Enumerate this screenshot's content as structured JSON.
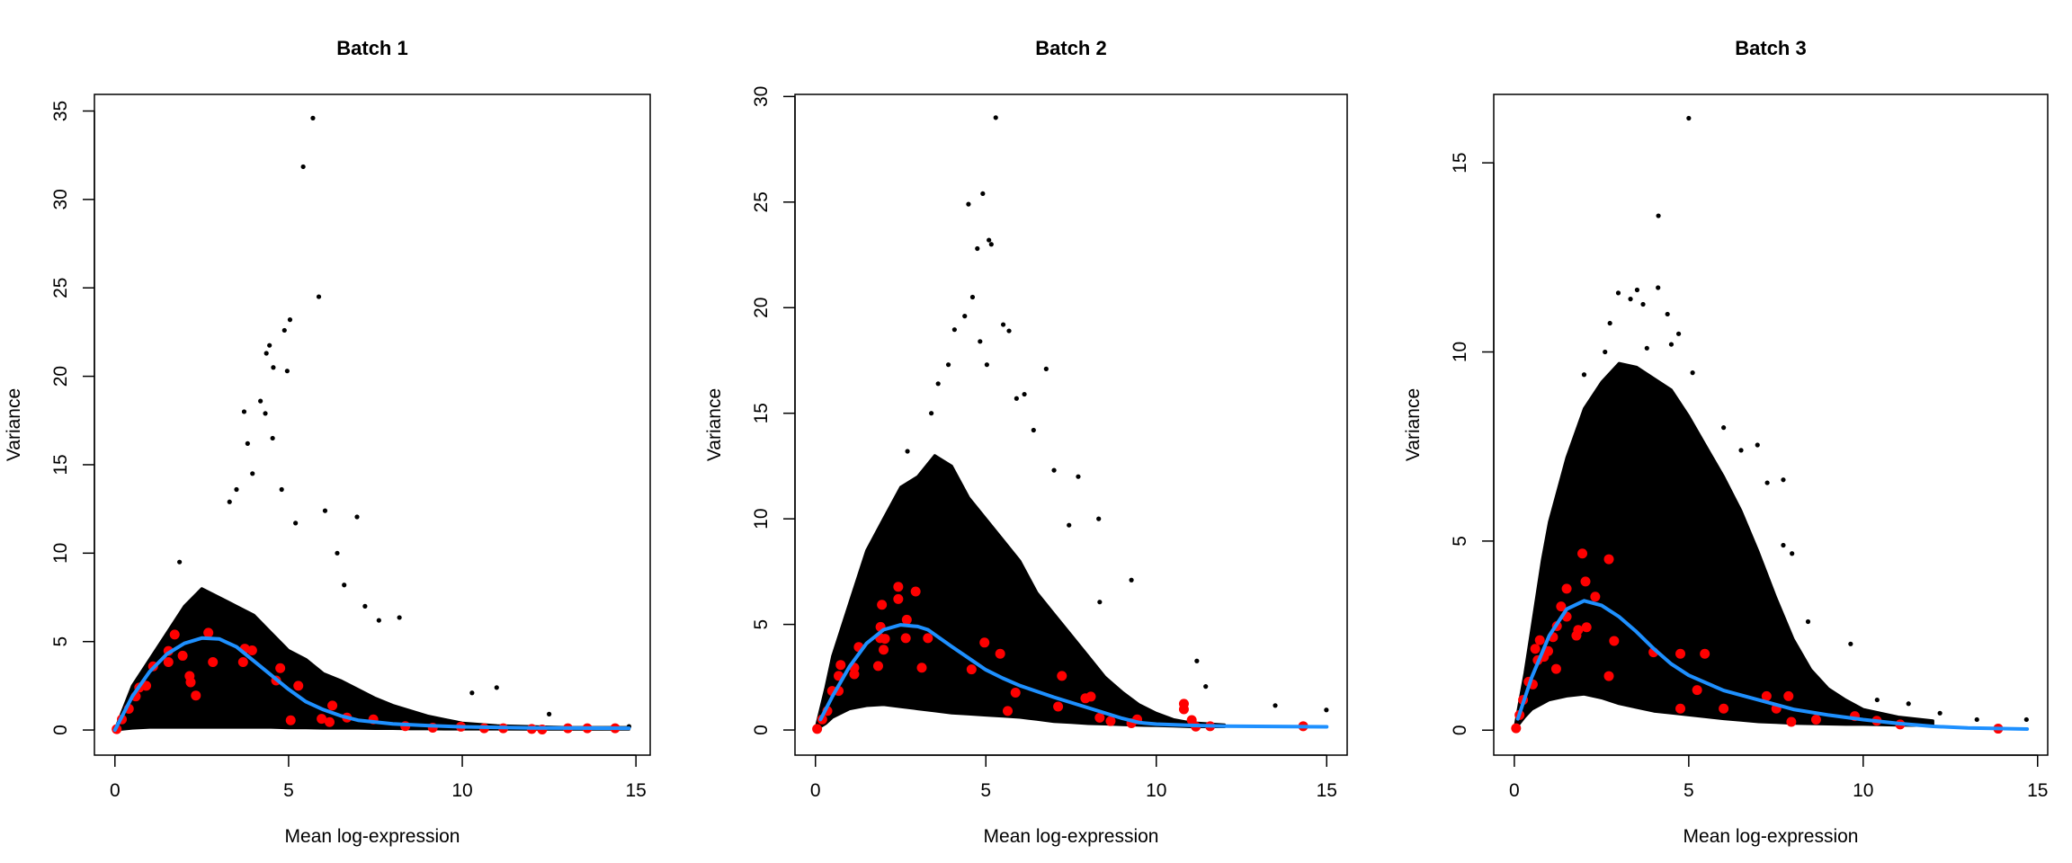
{
  "colors": {
    "points": "#000000",
    "highlight": "#ff0000",
    "trend": "#1e90ff"
  },
  "chart_data": [
    {
      "type": "scatter",
      "title": "Batch 1",
      "xlabel": "Mean log-expression",
      "ylabel": "Variance",
      "xlim": [
        -0.59,
        15.41
      ],
      "ylim": [
        -1.42,
        35.94
      ],
      "xticks": [
        0,
        5,
        10,
        15
      ],
      "yticks": [
        0,
        5,
        10,
        15,
        20,
        25,
        30,
        35
      ],
      "grid": false,
      "cloud": {
        "x": [
          0,
          0.5,
          1,
          1.5,
          2,
          2.5,
          3,
          3.5,
          4,
          4.5,
          5,
          5.5,
          6,
          6.5,
          7,
          7.5,
          8,
          8.5,
          9,
          9.5,
          10,
          11,
          12,
          13,
          14.8
        ],
        "upper": [
          0,
          2.5,
          4,
          5.5,
          7,
          8,
          7.5,
          7,
          6.5,
          5.5,
          4.5,
          4,
          3.2,
          2.8,
          2.3,
          1.8,
          1.4,
          1.1,
          0.8,
          0.6,
          0.4,
          0.25,
          0.2,
          0.15,
          0.15
        ],
        "lower": [
          0,
          0.1,
          0.15,
          0.15,
          0.15,
          0.15,
          0.15,
          0.15,
          0.15,
          0.15,
          0.12,
          0.12,
          0.1,
          0.1,
          0.1,
          0.08,
          0.08,
          0.06,
          0.06,
          0.05,
          0.05,
          0.05,
          0.04,
          0.04,
          0.04
        ]
      },
      "outliers": [
        [
          5.7,
          34.6
        ],
        [
          5.42,
          31.85
        ],
        [
          5.87,
          24.5
        ],
        [
          5.04,
          23.2
        ],
        [
          4.88,
          22.6
        ],
        [
          4.45,
          21.75
        ],
        [
          4.36,
          21.3
        ],
        [
          4.56,
          20.5
        ],
        [
          4.96,
          20.3
        ],
        [
          4.19,
          18.6
        ],
        [
          3.72,
          18.0
        ],
        [
          4.33,
          17.9
        ],
        [
          4.54,
          16.5
        ],
        [
          3.82,
          16.2
        ],
        [
          3.96,
          14.5
        ],
        [
          6.97,
          12.05
        ],
        [
          6.05,
          12.4
        ],
        [
          8.19,
          6.36
        ],
        [
          1.86,
          9.5
        ],
        [
          10.99,
          2.4
        ],
        [
          10.28,
          2.1
        ],
        [
          12.5,
          0.9
        ],
        [
          14.8,
          0.2
        ],
        [
          3.5,
          13.6
        ],
        [
          3.3,
          12.9
        ],
        [
          4.8,
          13.6
        ],
        [
          5.2,
          11.7
        ],
        [
          6.4,
          10.0
        ],
        [
          6.6,
          8.2
        ],
        [
          7.2,
          7.0
        ],
        [
          7.6,
          6.2
        ]
      ],
      "highlighted": [
        [
          1.72,
          5.4
        ],
        [
          2.69,
          5.5
        ],
        [
          2.82,
          3.84
        ],
        [
          3.74,
          4.6
        ],
        [
          3.95,
          4.5
        ],
        [
          4.76,
          3.5
        ],
        [
          5.28,
          2.5
        ],
        [
          4.64,
          2.8
        ],
        [
          2.15,
          3.05
        ],
        [
          2.18,
          2.7
        ],
        [
          2.33,
          1.95
        ],
        [
          1.95,
          4.2
        ],
        [
          1.54,
          3.84
        ],
        [
          1.54,
          4.47
        ],
        [
          3.69,
          3.84
        ],
        [
          5.06,
          0.55
        ],
        [
          5.95,
          0.63
        ],
        [
          6.26,
          1.38
        ],
        [
          6.18,
          0.45
        ],
        [
          6.68,
          0.7
        ],
        [
          7.44,
          0.6
        ],
        [
          8.36,
          0.22
        ],
        [
          9.15,
          0.13
        ],
        [
          9.96,
          0.19
        ],
        [
          10.63,
          0.1
        ],
        [
          11.18,
          0.1
        ],
        [
          12.0,
          0.06
        ],
        [
          12.3,
          0.03
        ],
        [
          13.04,
          0.1
        ],
        [
          13.6,
          0.1
        ],
        [
          14.4,
          0.1
        ],
        [
          0.05,
          0.05
        ],
        [
          0.2,
          0.6
        ],
        [
          0.4,
          1.2
        ],
        [
          0.6,
          1.9
        ],
        [
          0.7,
          2.4
        ],
        [
          0.9,
          2.5
        ],
        [
          1.1,
          3.6
        ]
      ],
      "trend": [
        [
          0,
          0
        ],
        [
          0.5,
          1.9
        ],
        [
          1,
          3.3
        ],
        [
          1.5,
          4.3
        ],
        [
          2,
          4.9
        ],
        [
          2.5,
          5.2
        ],
        [
          3,
          5.15
        ],
        [
          3.5,
          4.7
        ],
        [
          4,
          3.9
        ],
        [
          4.5,
          3.1
        ],
        [
          5,
          2.3
        ],
        [
          5.5,
          1.6
        ],
        [
          6,
          1.15
        ],
        [
          6.5,
          0.8
        ],
        [
          7,
          0.55
        ],
        [
          8,
          0.35
        ],
        [
          9,
          0.25
        ],
        [
          10,
          0.18
        ],
        [
          12,
          0.12
        ],
        [
          14.8,
          0.1
        ]
      ]
    },
    {
      "type": "scatter",
      "title": "Batch 2",
      "xlabel": "Mean log-expression",
      "ylabel": "Variance",
      "xlim": [
        -0.6,
        15.6
      ],
      "ylim": [
        -1.19,
        30.1
      ],
      "xticks": [
        0,
        5,
        10,
        15
      ],
      "yticks": [
        0,
        5,
        10,
        15,
        20,
        25,
        30
      ],
      "grid": false,
      "cloud": {
        "x": [
          0,
          0.3,
          0.5,
          1,
          1.5,
          2,
          2.5,
          3,
          3.5,
          4,
          4.5,
          5,
          5.5,
          6,
          6.5,
          7,
          7.5,
          8,
          8.5,
          9,
          9.5,
          10,
          10.5,
          11,
          12
        ],
        "upper": [
          0,
          2,
          3.5,
          6,
          8.5,
          10,
          11.5,
          12,
          13,
          12.5,
          11,
          10,
          9,
          8,
          6.5,
          5.5,
          4.5,
          3.5,
          2.5,
          1.8,
          1.2,
          0.8,
          0.5,
          0.35,
          0.25
        ],
        "lower": [
          0,
          0.3,
          0.6,
          1.0,
          1.15,
          1.2,
          1.1,
          1.0,
          0.9,
          0.8,
          0.75,
          0.7,
          0.65,
          0.6,
          0.5,
          0.4,
          0.35,
          0.3,
          0.28,
          0.25,
          0.22,
          0.2,
          0.18,
          0.15,
          0.15
        ]
      },
      "outliers": [
        [
          5.29,
          29.0
        ],
        [
          4.91,
          25.4
        ],
        [
          4.49,
          24.9
        ],
        [
          5.09,
          23.2
        ],
        [
          4.75,
          22.8
        ],
        [
          5.16,
          23.0
        ],
        [
          4.61,
          20.5
        ],
        [
          4.38,
          19.6
        ],
        [
          4.08,
          18.96
        ],
        [
          5.51,
          19.2
        ],
        [
          5.68,
          18.9
        ],
        [
          4.83,
          18.4
        ],
        [
          6.77,
          17.1
        ],
        [
          5.03,
          17.3
        ],
        [
          6.13,
          15.9
        ],
        [
          5.9,
          15.7
        ],
        [
          7.71,
          12.0
        ],
        [
          8.31,
          10.0
        ],
        [
          9.27,
          7.1
        ],
        [
          8.34,
          6.06
        ],
        [
          11.19,
          3.27
        ],
        [
          11.45,
          2.06
        ],
        [
          13.49,
          1.16
        ],
        [
          14.99,
          0.95
        ],
        [
          7.44,
          9.7
        ],
        [
          3.6,
          16.4
        ],
        [
          3.9,
          17.3
        ],
        [
          3.4,
          15.0
        ],
        [
          6.4,
          14.2
        ],
        [
          7.0,
          12.3
        ],
        [
          2.7,
          13.2
        ]
      ],
      "highlighted": [
        [
          2.43,
          6.78
        ],
        [
          2.43,
          6.2
        ],
        [
          2.94,
          6.56
        ],
        [
          1.95,
          5.93
        ],
        [
          2.68,
          5.22
        ],
        [
          1.91,
          4.88
        ],
        [
          1.9,
          4.35
        ],
        [
          2.04,
          4.32
        ],
        [
          2.65,
          4.35
        ],
        [
          3.3,
          4.35
        ],
        [
          1.27,
          3.93
        ],
        [
          2.0,
          3.8
        ],
        [
          0.74,
          3.08
        ],
        [
          1.84,
          3.03
        ],
        [
          3.12,
          2.95
        ],
        [
          1.14,
          2.95
        ],
        [
          1.14,
          2.64
        ],
        [
          0.68,
          2.56
        ],
        [
          0.68,
          1.85
        ],
        [
          0.49,
          1.85
        ],
        [
          4.96,
          4.14
        ],
        [
          5.42,
          3.61
        ],
        [
          4.58,
          2.87
        ],
        [
          7.23,
          2.56
        ],
        [
          5.87,
          1.77
        ],
        [
          5.64,
          0.9
        ],
        [
          7.12,
          1.11
        ],
        [
          7.92,
          1.5
        ],
        [
          8.08,
          1.58
        ],
        [
          8.34,
          0.58
        ],
        [
          8.66,
          0.42
        ],
        [
          9.27,
          0.32
        ],
        [
          9.44,
          0.5
        ],
        [
          10.81,
          1.24
        ],
        [
          10.81,
          0.98
        ],
        [
          11.04,
          0.47
        ],
        [
          11.16,
          0.16
        ],
        [
          11.58,
          0.18
        ],
        [
          14.31,
          0.18
        ],
        [
          0.05,
          0.05
        ],
        [
          0.2,
          0.5
        ],
        [
          0.35,
          0.9
        ]
      ],
      "trend": [
        [
          0.15,
          0.5
        ],
        [
          0.5,
          1.6
        ],
        [
          1,
          3.0
        ],
        [
          1.5,
          4.1
        ],
        [
          2,
          4.75
        ],
        [
          2.5,
          4.98
        ],
        [
          3,
          4.9
        ],
        [
          3.3,
          4.75
        ],
        [
          4,
          3.95
        ],
        [
          4.5,
          3.4
        ],
        [
          5,
          2.85
        ],
        [
          5.5,
          2.45
        ],
        [
          6,
          2.1
        ],
        [
          7,
          1.55
        ],
        [
          8,
          1.05
        ],
        [
          9,
          0.55
        ],
        [
          9.5,
          0.35
        ],
        [
          10,
          0.28
        ],
        [
          11,
          0.22
        ],
        [
          12,
          0.18
        ],
        [
          15,
          0.15
        ]
      ]
    },
    {
      "type": "scatter",
      "title": "Batch 3",
      "xlabel": "Mean log-expression",
      "ylabel": "Variance",
      "xlim": [
        -0.59,
        15.29
      ],
      "ylim": [
        -0.66,
        16.81
      ],
      "xticks": [
        0,
        5,
        10,
        15
      ],
      "yticks": [
        0,
        5,
        10,
        15
      ],
      "grid": false,
      "cloud": {
        "x": [
          0,
          0.3,
          0.5,
          0.8,
          1,
          1.5,
          2,
          2.5,
          3,
          3.5,
          4,
          4.5,
          5,
          5.5,
          6,
          6.5,
          7,
          7.5,
          8,
          8.5,
          9,
          9.5,
          10,
          11,
          12
        ],
        "upper": [
          0,
          1.5,
          2.7,
          4.5,
          5.5,
          7.2,
          8.5,
          9.2,
          9.7,
          9.6,
          9.3,
          9.0,
          8.3,
          7.5,
          6.7,
          5.8,
          4.7,
          3.5,
          2.4,
          1.6,
          1.1,
          0.8,
          0.55,
          0.35,
          0.25
        ],
        "lower": [
          0,
          0.35,
          0.55,
          0.7,
          0.8,
          0.9,
          0.95,
          0.85,
          0.7,
          0.6,
          0.5,
          0.45,
          0.4,
          0.35,
          0.3,
          0.26,
          0.22,
          0.2,
          0.18,
          0.17,
          0.16,
          0.15,
          0.15,
          0.13,
          0.12
        ]
      },
      "outliers": [
        [
          5.0,
          16.18
        ],
        [
          4.13,
          13.6
        ],
        [
          2.98,
          11.56
        ],
        [
          3.52,
          11.64
        ],
        [
          4.12,
          11.7
        ],
        [
          3.69,
          11.26
        ],
        [
          3.33,
          11.4
        ],
        [
          4.39,
          11.0
        ],
        [
          2.74,
          10.76
        ],
        [
          4.71,
          10.48
        ],
        [
          6.97,
          7.54
        ],
        [
          7.71,
          6.62
        ],
        [
          7.25,
          6.54
        ],
        [
          7.71,
          4.89
        ],
        [
          7.96,
          4.67
        ],
        [
          8.42,
          2.87
        ],
        [
          9.64,
          2.28
        ],
        [
          13.26,
          0.28
        ],
        [
          14.68,
          0.28
        ],
        [
          5.11,
          9.45
        ],
        [
          2.0,
          9.4
        ],
        [
          2.6,
          10.0
        ],
        [
          3.8,
          10.1
        ],
        [
          4.5,
          10.2
        ],
        [
          6.0,
          8.0
        ],
        [
          6.5,
          7.4
        ],
        [
          10.4,
          0.8
        ],
        [
          11.3,
          0.7
        ],
        [
          12.2,
          0.45
        ]
      ],
      "highlighted": [
        [
          1.95,
          4.67
        ],
        [
          2.71,
          4.52
        ],
        [
          2.04,
          3.93
        ],
        [
          1.5,
          3.74
        ],
        [
          2.32,
          3.53
        ],
        [
          1.34,
          3.27
        ],
        [
          1.5,
          3.0
        ],
        [
          1.22,
          2.75
        ],
        [
          1.83,
          2.65
        ],
        [
          2.07,
          2.72
        ],
        [
          1.78,
          2.5
        ],
        [
          1.11,
          2.46
        ],
        [
          2.86,
          2.36
        ],
        [
          0.73,
          2.38
        ],
        [
          0.6,
          2.15
        ],
        [
          0.97,
          2.09
        ],
        [
          0.85,
          1.94
        ],
        [
          0.67,
          1.85
        ],
        [
          3.99,
          2.06
        ],
        [
          4.76,
          2.02
        ],
        [
          5.46,
          2.02
        ],
        [
          1.2,
          1.62
        ],
        [
          2.71,
          1.43
        ],
        [
          0.41,
          1.28
        ],
        [
          0.53,
          1.21
        ],
        [
          5.24,
          1.06
        ],
        [
          7.23,
          0.9
        ],
        [
          7.86,
          0.9
        ],
        [
          4.76,
          0.57
        ],
        [
          6.0,
          0.57
        ],
        [
          7.51,
          0.57
        ],
        [
          7.94,
          0.22
        ],
        [
          8.65,
          0.28
        ],
        [
          9.76,
          0.37
        ],
        [
          10.39,
          0.25
        ],
        [
          11.06,
          0.15
        ],
        [
          13.87,
          0.04
        ],
        [
          0.05,
          0.05
        ],
        [
          0.15,
          0.4
        ],
        [
          0.25,
          0.8
        ]
      ],
      "trend": [
        [
          0.1,
          0.3
        ],
        [
          0.5,
          1.4
        ],
        [
          1,
          2.5
        ],
        [
          1.5,
          3.2
        ],
        [
          2,
          3.42
        ],
        [
          2.5,
          3.3
        ],
        [
          3,
          3.0
        ],
        [
          3.5,
          2.6
        ],
        [
          4,
          2.15
        ],
        [
          4.5,
          1.75
        ],
        [
          5,
          1.45
        ],
        [
          6,
          1.05
        ],
        [
          7,
          0.8
        ],
        [
          8,
          0.55
        ],
        [
          9,
          0.4
        ],
        [
          10,
          0.28
        ],
        [
          11,
          0.18
        ],
        [
          12,
          0.1
        ],
        [
          13,
          0.06
        ],
        [
          14.7,
          0.03
        ]
      ]
    }
  ]
}
